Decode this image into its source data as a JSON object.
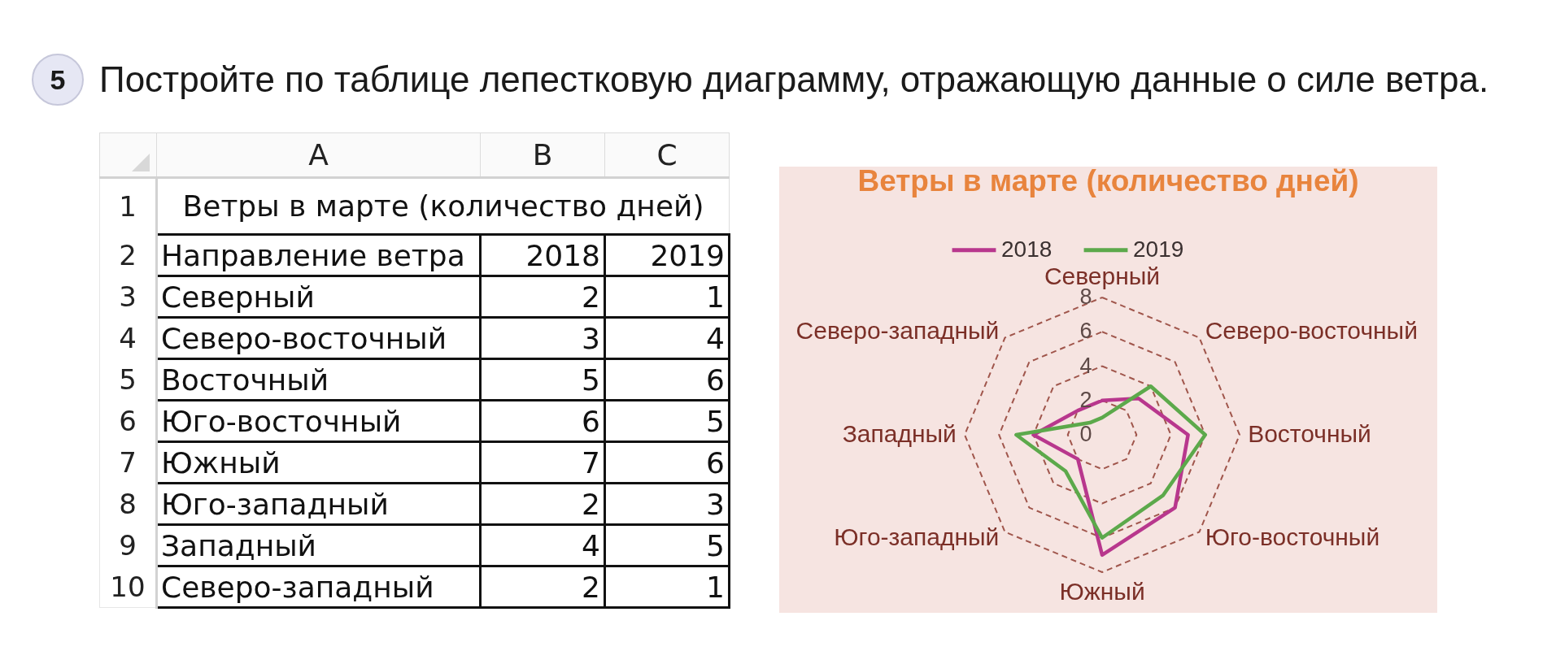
{
  "chart_data": {
    "type": "radar",
    "title": "Ветры в марте (количество дней)",
    "categories": [
      "Северный",
      "Северо-восточный",
      "Восточный",
      "Юго-восточный",
      "Южный",
      "Юго-западный",
      "Западный",
      "Северо-западный"
    ],
    "series": [
      {
        "name": "2018",
        "color": "#b8378d",
        "values": [
          2,
          3,
          5,
          6,
          7,
          2,
          4,
          2
        ]
      },
      {
        "name": "2019",
        "color": "#5ca94b",
        "values": [
          1,
          4,
          6,
          5,
          6,
          3,
          5,
          1
        ]
      }
    ],
    "ylim": [
      0,
      8
    ],
    "yticks": [
      0,
      2,
      4,
      6,
      8
    ],
    "grid": true,
    "legend": "top",
    "annotations": [
      "5",
      "Постройте по таблице лепестковую диаграмму, отражающую данные о силе ветра.",
      "Направление ветра",
      "A",
      "B",
      "C",
      "1",
      "2",
      "3",
      "4",
      "5",
      "6",
      "7",
      "8",
      "9",
      "10"
    ]
  }
}
